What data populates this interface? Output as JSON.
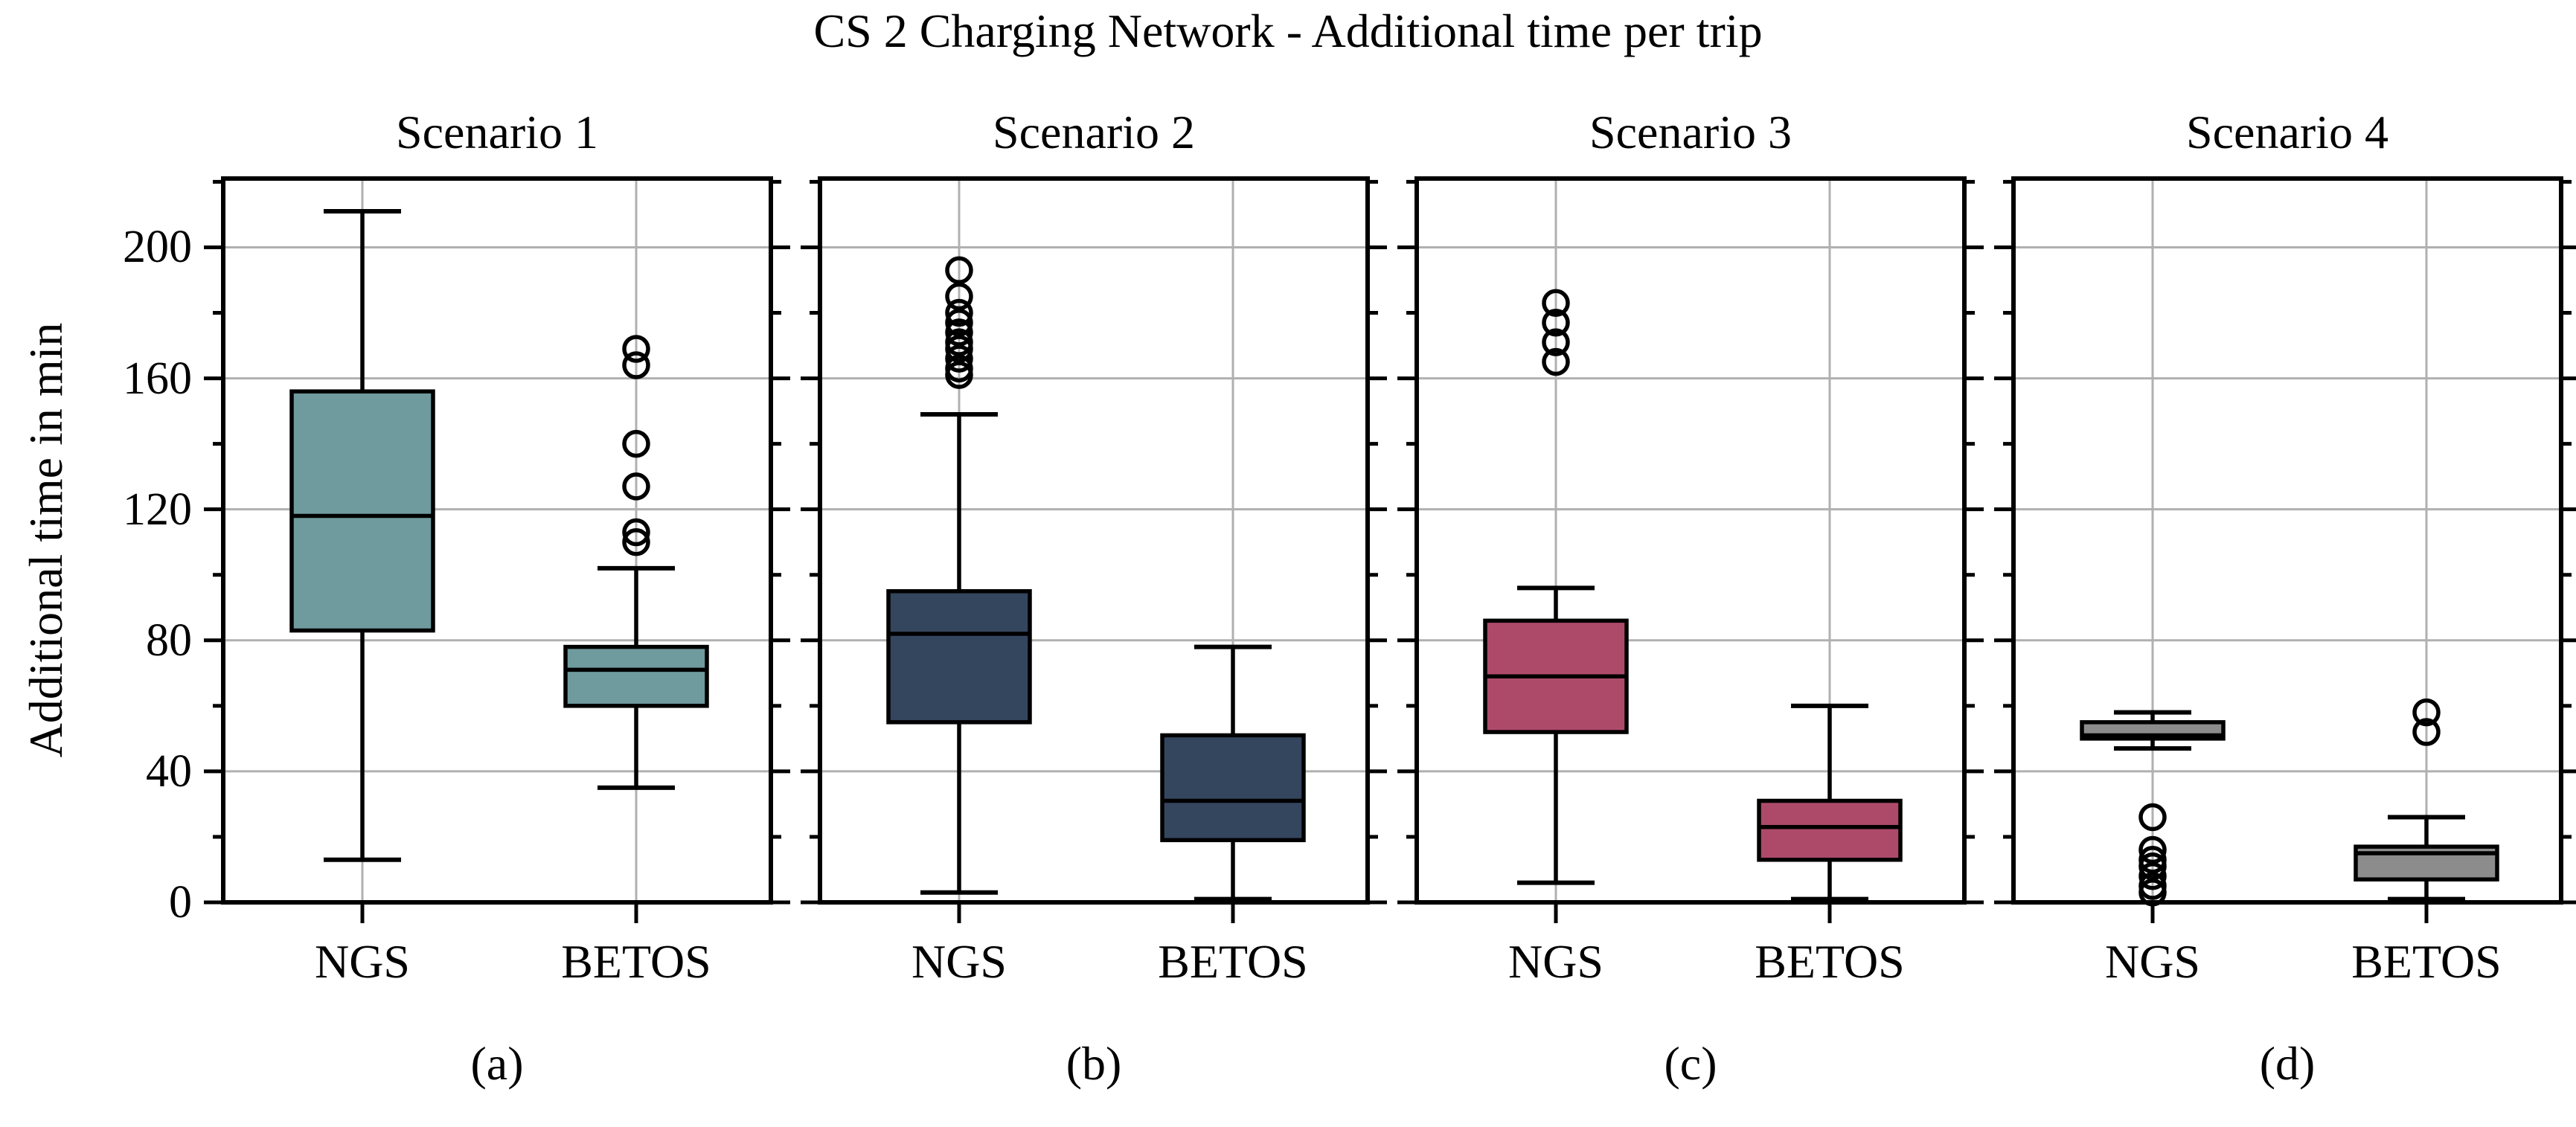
{
  "figure": {
    "title": "CS 2 Charging Network - Additional time per trip",
    "ylabel": "Additional time in min"
  },
  "chart_data": {
    "type": "boxplot",
    "title": "CS 2 Charging Network - Additional time per trip",
    "ylabel": "Additional time in min",
    "categories": [
      "NGS",
      "BETOS"
    ],
    "yticks": [
      0,
      40,
      80,
      120,
      160,
      200
    ],
    "yticks_minor": [
      20,
      60,
      100,
      140,
      180,
      220
    ],
    "ylim": [
      0,
      221
    ],
    "grid": true,
    "gridline_color": "#b0b0b0",
    "box_edge_color": "#000000",
    "subplots": [
      {
        "title": "Scenario 1",
        "caption": "(a)",
        "box_color": "#6f9a9e",
        "boxes": [
          {
            "label": "NGS",
            "whislo": 13,
            "q1": 83,
            "med": 118,
            "q3": 156,
            "whishi": 211,
            "fliers": []
          },
          {
            "label": "BETOS",
            "whislo": 35,
            "q1": 60,
            "med": 71,
            "q3": 78,
            "whishi": 102,
            "fliers": [
              110,
              113,
              127,
              140,
              164,
              169
            ]
          }
        ]
      },
      {
        "title": "Scenario 2",
        "caption": "(b)",
        "box_color": "#34455e",
        "boxes": [
          {
            "label": "NGS",
            "whislo": 3,
            "q1": 55,
            "med": 82,
            "q3": 95,
            "whishi": 149,
            "fliers": [
              161,
              163,
              166,
              169,
              171,
              174,
              177,
              180,
              185,
              193
            ]
          },
          {
            "label": "BETOS",
            "whislo": 1,
            "q1": 19,
            "med": 31,
            "q3": 51,
            "whishi": 78,
            "fliers": []
          }
        ]
      },
      {
        "title": "Scenario 3",
        "caption": "(c)",
        "box_color": "#ad4a6a",
        "boxes": [
          {
            "label": "NGS",
            "whislo": 6,
            "q1": 52,
            "med": 69,
            "q3": 86,
            "whishi": 96,
            "fliers": [
              165,
              171,
              177,
              183
            ]
          },
          {
            "label": "BETOS",
            "whislo": 1,
            "q1": 13,
            "med": 23,
            "q3": 31,
            "whishi": 60,
            "fliers": []
          }
        ]
      },
      {
        "title": "Scenario 4",
        "caption": "(d)",
        "box_color": "#8c8c8c",
        "boxes": [
          {
            "label": "NGS",
            "whislo": 47,
            "q1": 50,
            "med": 51,
            "q3": 55,
            "whishi": 58,
            "fliers": [
              26,
              16,
              13,
              11,
              8,
              5,
              3
            ]
          },
          {
            "label": "BETOS",
            "whislo": 1,
            "q1": 7,
            "med": 15,
            "q3": 17,
            "whishi": 26,
            "fliers": [
              52,
              58
            ]
          }
        ]
      }
    ]
  }
}
